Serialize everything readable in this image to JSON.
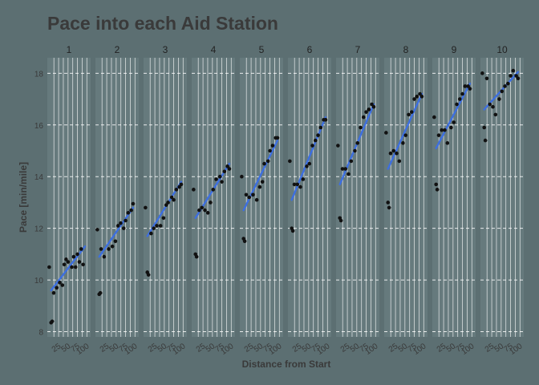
{
  "chart_data": {
    "type": "scatter",
    "title": "Pace into each Aid Station",
    "xlabel": "Distance from Start",
    "ylabel": "Pace [min/mile]",
    "ylim": [
      7.8,
      18.6
    ],
    "y_ticks": [
      8,
      10,
      12,
      14,
      16,
      18
    ],
    "xlim": [
      -5,
      110
    ],
    "x_ticks": [
      25,
      50,
      75,
      100
    ],
    "x_tick_labels": [
      "25",
      "50",
      "75",
      "100"
    ],
    "grid": true,
    "trend_line": "linear fit per panel",
    "colors": {
      "background": "#5c6f72",
      "panel": "#667a7d",
      "point": "#111111",
      "trend": "#3d6fe0",
      "grid": "#ffffff"
    },
    "panels": [
      {
        "label": "1",
        "points": [
          [
            0,
            10.5
          ],
          [
            5,
            8.35
          ],
          [
            8,
            8.4
          ],
          [
            12,
            9.5
          ],
          [
            20,
            9.7
          ],
          [
            28,
            9.9
          ],
          [
            35,
            9.8
          ],
          [
            40,
            10.6
          ],
          [
            45,
            10.8
          ],
          [
            50,
            10.7
          ],
          [
            60,
            10.5
          ],
          [
            65,
            10.9
          ],
          [
            70,
            10.5
          ],
          [
            75,
            11.0
          ],
          [
            80,
            10.7
          ],
          [
            85,
            11.2
          ],
          [
            90,
            10.6
          ]
        ],
        "trend": [
          [
            5,
            9.6
          ],
          [
            95,
            11.3
          ]
        ]
      },
      {
        "label": "2",
        "points": [
          [
            0,
            11.95
          ],
          [
            5,
            9.45
          ],
          [
            8,
            9.5
          ],
          [
            10,
            11.2
          ],
          [
            18,
            10.9
          ],
          [
            30,
            11.2
          ],
          [
            40,
            11.3
          ],
          [
            48,
            11.5
          ],
          [
            55,
            12.1
          ],
          [
            62,
            12.2
          ],
          [
            70,
            12.0
          ],
          [
            75,
            12.3
          ],
          [
            82,
            12.6
          ],
          [
            90,
            12.7
          ],
          [
            95,
            12.95
          ]
        ],
        "trend": [
          [
            5,
            10.9
          ],
          [
            95,
            12.8
          ]
        ]
      },
      {
        "label": "3",
        "points": [
          [
            0,
            12.8
          ],
          [
            5,
            10.3
          ],
          [
            8,
            10.2
          ],
          [
            15,
            11.8
          ],
          [
            22,
            12.0
          ],
          [
            30,
            12.1
          ],
          [
            40,
            12.1
          ],
          [
            48,
            12.4
          ],
          [
            55,
            12.9
          ],
          [
            60,
            13.0
          ],
          [
            70,
            13.2
          ],
          [
            75,
            13.1
          ],
          [
            82,
            13.5
          ],
          [
            90,
            13.6
          ],
          [
            95,
            13.7
          ]
        ],
        "trend": [
          [
            5,
            11.7
          ],
          [
            95,
            13.8
          ]
        ]
      },
      {
        "label": "4",
        "points": [
          [
            0,
            13.5
          ],
          [
            5,
            11.0
          ],
          [
            8,
            10.9
          ],
          [
            15,
            12.7
          ],
          [
            22,
            12.8
          ],
          [
            30,
            12.7
          ],
          [
            38,
            12.6
          ],
          [
            45,
            13.0
          ],
          [
            52,
            13.5
          ],
          [
            60,
            13.9
          ],
          [
            70,
            14.0
          ],
          [
            75,
            13.8
          ],
          [
            82,
            14.2
          ],
          [
            90,
            14.4
          ],
          [
            95,
            14.3
          ]
        ],
        "trend": [
          [
            5,
            12.4
          ],
          [
            95,
            14.5
          ]
        ]
      },
      {
        "label": "5",
        "points": [
          [
            0,
            14.0
          ],
          [
            5,
            11.6
          ],
          [
            8,
            11.5
          ],
          [
            12,
            13.3
          ],
          [
            20,
            13.2
          ],
          [
            30,
            13.3
          ],
          [
            40,
            13.1
          ],
          [
            48,
            13.6
          ],
          [
            55,
            13.8
          ],
          [
            60,
            14.5
          ],
          [
            70,
            14.6
          ],
          [
            75,
            15.0
          ],
          [
            82,
            15.2
          ],
          [
            90,
            15.5
          ],
          [
            95,
            15.5
          ]
        ],
        "trend": [
          [
            5,
            12.7
          ],
          [
            95,
            15.4
          ]
        ]
      },
      {
        "label": "6",
        "points": [
          [
            0,
            14.6
          ],
          [
            5,
            12.0
          ],
          [
            8,
            11.9
          ],
          [
            12,
            13.7
          ],
          [
            20,
            13.7
          ],
          [
            28,
            13.6
          ],
          [
            35,
            13.9
          ],
          [
            45,
            14.4
          ],
          [
            52,
            14.5
          ],
          [
            60,
            15.2
          ],
          [
            68,
            15.4
          ],
          [
            75,
            15.6
          ],
          [
            82,
            15.9
          ],
          [
            90,
            16.2
          ],
          [
            95,
            16.2
          ]
        ],
        "trend": [
          [
            5,
            13.1
          ],
          [
            95,
            16.3
          ]
        ]
      },
      {
        "label": "7",
        "points": [
          [
            0,
            15.2
          ],
          [
            5,
            12.4
          ],
          [
            8,
            12.3
          ],
          [
            12,
            14.3
          ],
          [
            20,
            14.3
          ],
          [
            28,
            14.1
          ],
          [
            35,
            14.6
          ],
          [
            45,
            15.0
          ],
          [
            52,
            15.3
          ],
          [
            60,
            15.9
          ],
          [
            68,
            16.3
          ],
          [
            75,
            16.5
          ],
          [
            82,
            16.6
          ],
          [
            90,
            16.8
          ],
          [
            95,
            16.7
          ]
        ],
        "trend": [
          [
            5,
            13.7
          ],
          [
            95,
            16.8
          ]
        ]
      },
      {
        "label": "8",
        "points": [
          [
            0,
            15.7
          ],
          [
            5,
            13.0
          ],
          [
            8,
            12.8
          ],
          [
            12,
            14.9
          ],
          [
            20,
            15.0
          ],
          [
            28,
            14.9
          ],
          [
            35,
            14.6
          ],
          [
            45,
            15.3
          ],
          [
            52,
            15.6
          ],
          [
            60,
            16.4
          ],
          [
            68,
            16.5
          ],
          [
            75,
            17.0
          ],
          [
            82,
            17.1
          ],
          [
            90,
            17.2
          ],
          [
            95,
            17.1
          ]
        ],
        "trend": [
          [
            5,
            14.3
          ],
          [
            95,
            17.2
          ]
        ]
      },
      {
        "label": "9",
        "points": [
          [
            0,
            16.3
          ],
          [
            5,
            13.7
          ],
          [
            8,
            13.5
          ],
          [
            12,
            15.6
          ],
          [
            20,
            15.8
          ],
          [
            28,
            15.8
          ],
          [
            35,
            15.3
          ],
          [
            45,
            15.9
          ],
          [
            52,
            16.1
          ],
          [
            60,
            16.8
          ],
          [
            68,
            17.0
          ],
          [
            75,
            17.2
          ],
          [
            82,
            17.5
          ],
          [
            90,
            17.5
          ],
          [
            95,
            17.4
          ]
        ],
        "trend": [
          [
            5,
            15.1
          ],
          [
            95,
            17.6
          ]
        ]
      },
      {
        "label": "10",
        "points": [
          [
            0,
            18.0
          ],
          [
            5,
            15.9
          ],
          [
            8,
            15.4
          ],
          [
            12,
            17.8
          ],
          [
            20,
            16.8
          ],
          [
            28,
            16.7
          ],
          [
            35,
            16.4
          ],
          [
            45,
            17.0
          ],
          [
            52,
            17.3
          ],
          [
            60,
            17.5
          ],
          [
            68,
            17.6
          ],
          [
            75,
            17.9
          ],
          [
            82,
            18.1
          ],
          [
            90,
            17.9
          ],
          [
            95,
            17.8
          ]
        ],
        "trend": [
          [
            5,
            16.6
          ],
          [
            95,
            18.05
          ]
        ]
      }
    ]
  }
}
